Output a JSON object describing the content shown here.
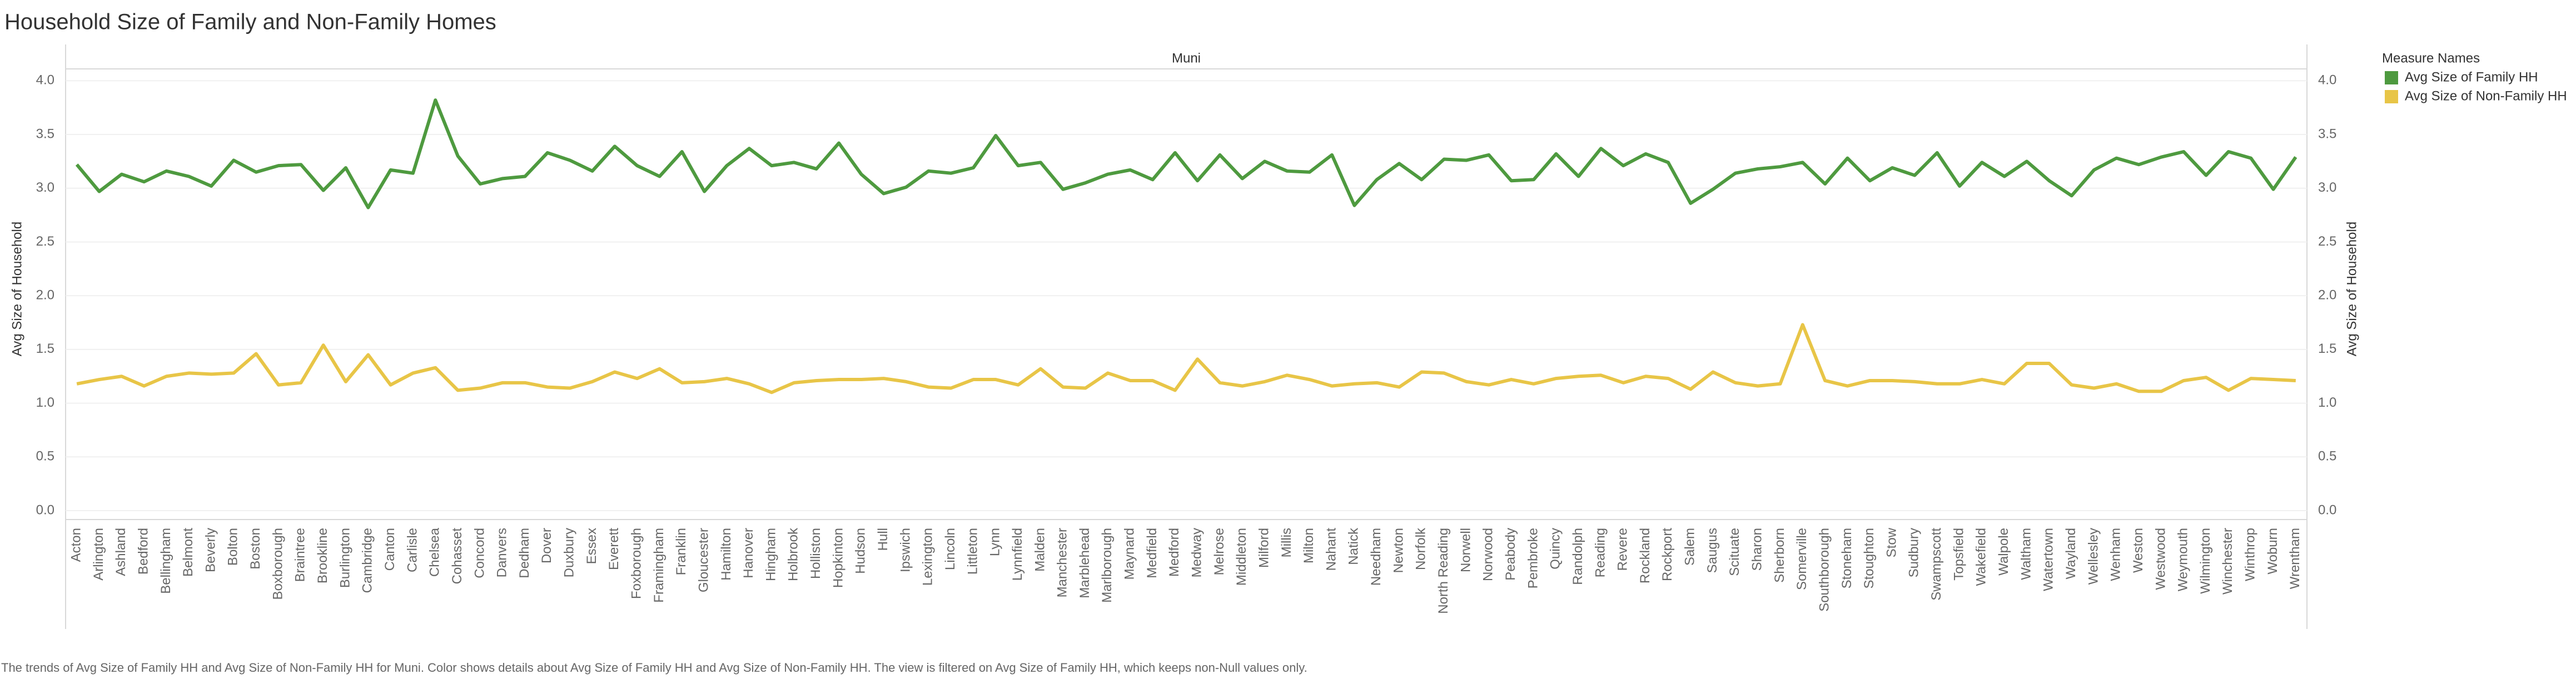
{
  "chart_data": {
    "type": "line",
    "title": "Household Size of Family and Non-Family Homes",
    "x_label": "Muni",
    "y_label": "Avg Size of Household",
    "legend_title": "Measure Names",
    "caption": "The trends of Avg Size of Family HH and Avg Size of Non-Family HH for Muni.  Color shows details about Avg Size of Family HH and Avg Size of Non-Family HH. The view is filtered on Avg Size of Family HH, which keeps non-Null values only.",
    "categories": [
      "Acton",
      "Arlington",
      "Ashland",
      "Bedford",
      "Bellingham",
      "Belmont",
      "Beverly",
      "Bolton",
      "Boston",
      "Boxborough",
      "Braintree",
      "Brookline",
      "Burlington",
      "Cambridge",
      "Canton",
      "Carlisle",
      "Chelsea",
      "Cohasset",
      "Concord",
      "Danvers",
      "Dedham",
      "Dover",
      "Duxbury",
      "Essex",
      "Everett",
      "Foxborough",
      "Framingham",
      "Franklin",
      "Gloucester",
      "Hamilton",
      "Hanover",
      "Hingham",
      "Holbrook",
      "Holliston",
      "Hopkinton",
      "Hudson",
      "Hull",
      "Ipswich",
      "Lexington",
      "Lincoln",
      "Littleton",
      "Lynn",
      "Lynnfield",
      "Malden",
      "Manchester",
      "Marblehead",
      "Marlborough",
      "Maynard",
      "Medfield",
      "Medford",
      "Medway",
      "Melrose",
      "Middleton",
      "Milford",
      "Millis",
      "Milton",
      "Nahant",
      "Natick",
      "Needham",
      "Newton",
      "Norfolk",
      "North Reading",
      "Norwell",
      "Norwood",
      "Peabody",
      "Pembroke",
      "Quincy",
      "Randolph",
      "Reading",
      "Revere",
      "Rockland",
      "Rockport",
      "Salem",
      "Saugus",
      "Scituate",
      "Sharon",
      "Sherborn",
      "Somerville",
      "Southborough",
      "Stoneham",
      "Stoughton",
      "Stow",
      "Sudbury",
      "Swampscott",
      "Topsfield",
      "Wakefield",
      "Walpole",
      "Waltham",
      "Watertown",
      "Wayland",
      "Wellesley",
      "Wenham",
      "Weston",
      "Westwood",
      "Weymouth",
      "Wilmington",
      "Winchester",
      "Winthrop",
      "Woburn",
      "Wrentham"
    ],
    "series": [
      {
        "name": "Avg Size of Family HH",
        "color": "#4e9a3f",
        "values": [
          3.22,
          2.97,
          3.13,
          3.06,
          3.16,
          3.11,
          3.02,
          3.26,
          3.15,
          3.21,
          3.22,
          2.98,
          3.19,
          2.82,
          3.17,
          3.14,
          3.82,
          3.3,
          3.04,
          3.09,
          3.11,
          3.33,
          3.26,
          3.16,
          3.39,
          3.21,
          3.11,
          3.34,
          2.97,
          3.21,
          3.37,
          3.21,
          3.24,
          3.18,
          3.42,
          3.13,
          2.95,
          3.01,
          3.16,
          3.14,
          3.19,
          3.49,
          3.21,
          3.24,
          2.99,
          3.05,
          3.13,
          3.17,
          3.08,
          3.33,
          3.07,
          3.31,
          3.09,
          3.25,
          3.16,
          3.15,
          3.31,
          2.84,
          3.08,
          3.23,
          3.08,
          3.27,
          3.26,
          3.31,
          3.07,
          3.08,
          3.32,
          3.11,
          3.37,
          3.21,
          3.32,
          3.24,
          2.86,
          2.99,
          3.14,
          3.18,
          3.2,
          3.24,
          3.04,
          3.28,
          3.07,
          3.19,
          3.12,
          3.33,
          3.02,
          3.24,
          3.11,
          3.25,
          3.07,
          2.93,
          3.17,
          3.28,
          3.22,
          3.29,
          3.34,
          3.12,
          3.34,
          3.28,
          2.99,
          3.29
        ]
      },
      {
        "name": "Avg Size of Non-Family HH",
        "color": "#e8c547",
        "values": [
          1.18,
          1.22,
          1.25,
          1.16,
          1.25,
          1.28,
          1.27,
          1.28,
          1.46,
          1.17,
          1.19,
          1.54,
          1.2,
          1.45,
          1.17,
          1.28,
          1.33,
          1.12,
          1.14,
          1.19,
          1.19,
          1.15,
          1.14,
          1.2,
          1.29,
          1.23,
          1.32,
          1.19,
          1.2,
          1.23,
          1.18,
          1.1,
          1.19,
          1.21,
          1.22,
          1.22,
          1.23,
          1.2,
          1.15,
          1.14,
          1.22,
          1.22,
          1.17,
          1.32,
          1.15,
          1.14,
          1.28,
          1.21,
          1.21,
          1.12,
          1.41,
          1.19,
          1.16,
          1.2,
          1.26,
          1.22,
          1.16,
          1.18,
          1.19,
          1.15,
          1.29,
          1.28,
          1.2,
          1.17,
          1.22,
          1.18,
          1.23,
          1.25,
          1.26,
          1.19,
          1.25,
          1.23,
          1.13,
          1.29,
          1.19,
          1.16,
          1.18,
          1.73,
          1.21,
          1.16,
          1.21,
          1.21,
          1.2,
          1.18,
          1.18,
          1.22,
          1.18,
          1.37,
          1.37,
          1.17,
          1.14,
          1.18,
          1.11,
          1.11,
          1.21,
          1.24,
          1.12,
          1.23,
          1.22,
          1.21
        ]
      }
    ],
    "ylim": [
      0,
      4.1
    ],
    "yticks": [
      {
        "value": 0,
        "label": "0.0"
      },
      {
        "value": 0.5,
        "label": "0.5"
      },
      {
        "value": 1,
        "label": "1.0"
      },
      {
        "value": 1.5,
        "label": "1.5"
      },
      {
        "value": 2,
        "label": "2.0"
      },
      {
        "value": 2.5,
        "label": "2.5"
      },
      {
        "value": 3,
        "label": "3.0"
      },
      {
        "value": 3.5,
        "label": "3.5"
      },
      {
        "value": 4,
        "label": "4.0"
      }
    ],
    "grid": true
  }
}
